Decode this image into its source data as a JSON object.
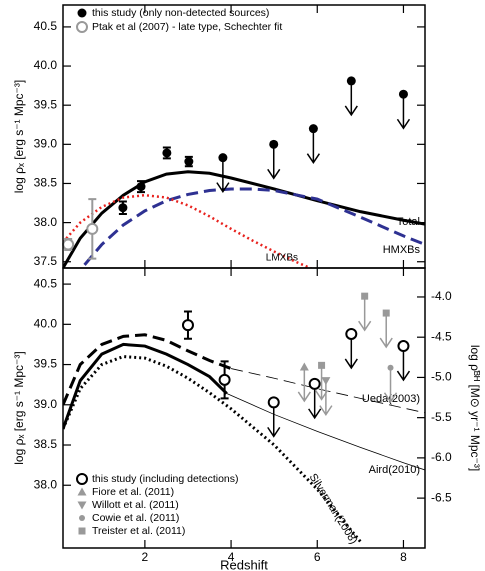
{
  "chart_data": [
    {
      "type": "line",
      "xlim": [
        0.1,
        8.5
      ],
      "ylim": [
        37.42,
        40.78
      ],
      "xticks": [
        2,
        4,
        6,
        8
      ],
      "xtick_labels": false,
      "yticks": [
        {
          "value": 37.5,
          "label": "37.5"
        },
        {
          "value": 38,
          "label": "38.0"
        },
        {
          "value": 38.5,
          "label": "38.5"
        },
        {
          "value": 39,
          "label": "39.0"
        },
        {
          "value": 39.5,
          "label": "39.5"
        },
        {
          "value": 40,
          "label": "40.0"
        },
        {
          "value": 40.5,
          "label": "40.5"
        }
      ],
      "ylabel": "log ρₓ [erg s⁻¹ Mpc⁻³]",
      "legend": "upper left",
      "series": [
        {
          "label": "Total",
          "color": "#000000",
          "style": "solid",
          "width": 3,
          "x": [
            0.1,
            0.5,
            1,
            1.5,
            2,
            2.5,
            3,
            3.5,
            4,
            5,
            6,
            7,
            8,
            8.5
          ],
          "values": [
            37.42,
            37.8,
            38.12,
            38.35,
            38.52,
            38.62,
            38.65,
            38.63,
            38.57,
            38.43,
            38.28,
            38.14,
            38.03,
            37.98
          ]
        },
        {
          "label": "HMXBs",
          "color": "#2e3192",
          "style": "dashed",
          "width": 3,
          "x": [
            0.6,
            1,
            1.5,
            2,
            2.5,
            3,
            3.5,
            4,
            4.5,
            5,
            6,
            7,
            8,
            8.5
          ],
          "values": [
            37.46,
            37.72,
            37.97,
            38.15,
            38.28,
            38.36,
            38.41,
            38.43,
            38.43,
            38.41,
            38.3,
            38.07,
            37.83,
            37.72
          ]
        },
        {
          "label": "LMXBs",
          "color": "#e8231f",
          "style": "dotted",
          "width": 2.5,
          "x": [
            0.1,
            0.5,
            1,
            1.5,
            2,
            2.5,
            3,
            3.5,
            4,
            4.5,
            5,
            5.5,
            6
          ],
          "values": [
            37.75,
            38.0,
            38.2,
            38.32,
            38.35,
            38.32,
            38.22,
            38.08,
            37.92,
            37.77,
            37.63,
            37.5,
            37.38
          ]
        },
        {
          "name": "this study (only non-detected sources)",
          "color": "#000000",
          "marker": "filled-circle",
          "x": [
            1.49,
            1.91,
            2.51,
            3.02,
            3.81,
            4.99,
            5.91,
            6.79,
            8.0
          ],
          "values": [
            38.19,
            38.46,
            38.89,
            38.78,
            38.83,
            39.0,
            39.2,
            39.81,
            39.64
          ],
          "errors": [
            0.08,
            0.07,
            0.07,
            0.06,
            null,
            null,
            null,
            null,
            null
          ],
          "upper_limits": [
            false,
            false,
            false,
            false,
            true,
            true,
            true,
            true,
            true
          ]
        },
        {
          "name": "Ptak et al (2007) - late type, Schechter fit",
          "color": "#999999",
          "marker": "open-circle",
          "x": [
            0.22,
            0.78
          ],
          "values": [
            37.72,
            37.92
          ],
          "errors": [
            0.07,
            0.38
          ],
          "upper_limits": [
            false,
            false
          ]
        }
      ]
    },
    {
      "type": "line",
      "xlim": [
        0.1,
        8.5
      ],
      "ylim": [
        37.22,
        40.7
      ],
      "xticks": [
        2,
        4,
        6,
        8
      ],
      "xtick_labels": true,
      "xlabel": "Redshift",
      "yticks": [
        {
          "value": 38,
          "label": "38.0"
        },
        {
          "value": 38.5,
          "label": "38.5"
        },
        {
          "value": 39,
          "label": "39.0"
        },
        {
          "value": 39.5,
          "label": "39.5"
        },
        {
          "value": 40,
          "label": "40.0"
        },
        {
          "value": 40.5,
          "label": "40.5"
        }
      ],
      "y2lim": [
        -7.12,
        -3.64
      ],
      "y2ticks": [
        {
          "value": -4,
          "label": "-4.0"
        },
        {
          "value": -4.5,
          "label": "-4.5"
        },
        {
          "value": -5,
          "label": "-5.0"
        },
        {
          "value": -5.5,
          "label": "-5.5"
        },
        {
          "value": -6,
          "label": "-6.0"
        },
        {
          "value": -6.5,
          "label": "-6.5"
        }
      ],
      "ylabel": "log ρₓ [erg s⁻¹ Mpc⁻³]",
      "y2label": "log ρ̇ᴮᴴ [M⊙ yr⁻¹ Mpc⁻³]",
      "legend": "lower left",
      "series": [
        {
          "color": "#000000",
          "style": "solid",
          "width": 3,
          "x": [
            0.1,
            0.5,
            1,
            1.5,
            2,
            2.5,
            3,
            3.5,
            3.9
          ],
          "values": [
            38.7,
            39.3,
            39.63,
            39.75,
            39.73,
            39.63,
            39.5,
            39.35,
            39.14
          ]
        },
        {
          "label": "Aird(2010)",
          "color": "#000000",
          "style": "solid",
          "width": 0.8,
          "x": [
            3.9,
            5,
            6,
            7,
            8,
            8.5
          ],
          "values": [
            39.14,
            38.88,
            38.67,
            38.47,
            38.28,
            38.19
          ]
        },
        {
          "color": "#000000",
          "style": "dashed",
          "width": 3,
          "x": [
            0.1,
            0.5,
            1,
            1.5,
            2,
            2.5,
            3,
            3.5,
            4
          ],
          "values": [
            39.0,
            39.5,
            39.75,
            39.85,
            39.87,
            39.8,
            39.67,
            39.55,
            39.45
          ]
        },
        {
          "label": "Ueda(2003)",
          "color": "#000000",
          "style": "dashed",
          "width": 0.8,
          "x": [
            4,
            5,
            6,
            7,
            8,
            8.5
          ],
          "values": [
            39.45,
            39.33,
            39.2,
            39.08,
            38.96,
            38.9
          ]
        },
        {
          "label": "Silverman(2008)",
          "color": "#000000",
          "style": "dotted",
          "width": 3,
          "x": [
            0.1,
            0.5,
            1,
            1.5,
            2,
            2.5,
            3,
            3.5,
            4,
            5,
            6,
            7
          ],
          "values": [
            38.7,
            39.2,
            39.5,
            39.6,
            39.58,
            39.48,
            39.33,
            39.15,
            38.95,
            38.5,
            37.95,
            37.3
          ]
        },
        {
          "name": "this study (including detections)",
          "color": "#000000",
          "marker": "open-circle",
          "x": [
            3.0,
            3.85,
            4.99,
            5.94,
            6.79,
            8.0
          ],
          "values": [
            39.99,
            39.31,
            39.03,
            39.26,
            39.88,
            39.73
          ],
          "errors": [
            0.17,
            0.23,
            null,
            null,
            null,
            null
          ],
          "upper_limits": [
            false,
            false,
            true,
            true,
            true,
            true
          ]
        },
        {
          "name": "Fiore et al. (2011)",
          "color": "#999999",
          "marker": "triangle-up",
          "x": [
            5.7
          ],
          "values": [
            39.47
          ],
          "upper_limits": [
            true
          ]
        },
        {
          "name": "Willott et al. (2011)",
          "color": "#999999",
          "marker": "triangle-down",
          "x": [
            6.2
          ],
          "values": [
            39.3
          ],
          "upper_limits": [
            true
          ]
        },
        {
          "name": "Cowie et al. (2011)",
          "color": "#999999",
          "marker": "dot",
          "x": [
            7.7
          ],
          "values": [
            39.46
          ],
          "upper_limits": [
            true
          ]
        },
        {
          "name": "Treister et al. (2011)",
          "color": "#999999",
          "marker": "square",
          "x": [
            6.1,
            7.1,
            7.6
          ],
          "values": [
            39.49,
            40.35,
            40.14
          ],
          "upper_limits": [
            true,
            true,
            true
          ]
        }
      ]
    }
  ]
}
